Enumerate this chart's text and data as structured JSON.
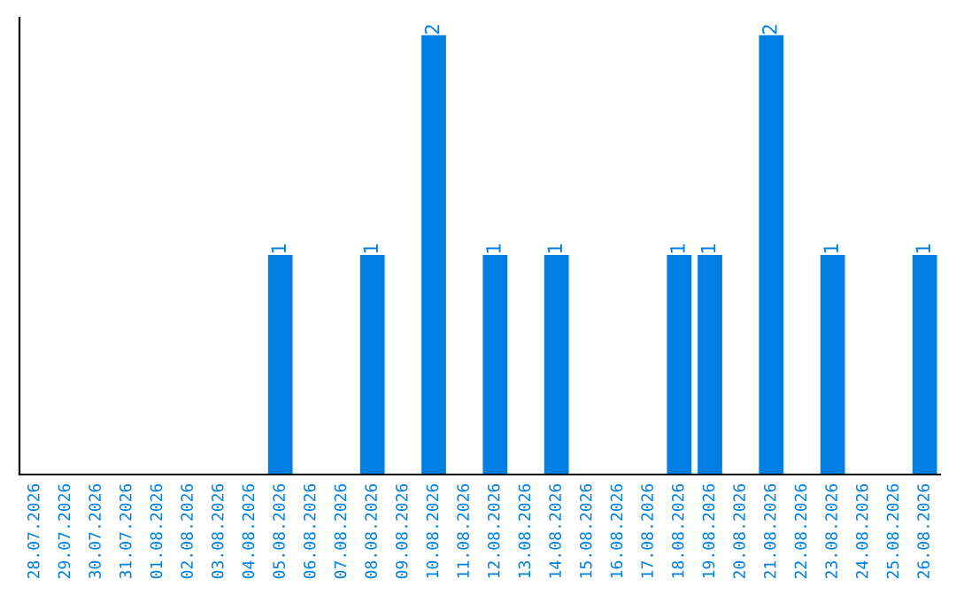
{
  "chart_data": {
    "type": "bar",
    "categories": [
      "28.07.2026",
      "29.07.2026",
      "30.07.2026",
      "31.07.2026",
      "01.08.2026",
      "02.08.2026",
      "03.08.2026",
      "04.08.2026",
      "05.08.2026",
      "06.08.2026",
      "07.08.2026",
      "08.08.2026",
      "09.08.2026",
      "10.08.2026",
      "11.08.2026",
      "12.08.2026",
      "13.08.2026",
      "14.08.2026",
      "15.08.2026",
      "16.08.2026",
      "17.08.2026",
      "18.08.2026",
      "19.08.2026",
      "20.08.2026",
      "21.08.2026",
      "22.08.2026",
      "23.08.2026",
      "24.08.2026",
      "25.08.2026",
      "26.08.2026"
    ],
    "values": [
      0,
      0,
      0,
      0,
      0,
      0,
      0,
      0,
      1,
      0,
      0,
      1,
      0,
      2,
      0,
      1,
      0,
      1,
      0,
      0,
      0,
      1,
      1,
      0,
      2,
      0,
      1,
      0,
      0,
      1
    ],
    "value_labels": [
      null,
      null,
      null,
      null,
      null,
      null,
      null,
      null,
      "1",
      null,
      null,
      "1",
      null,
      "2",
      null,
      "1",
      null,
      "1",
      null,
      null,
      null,
      "1",
      "1",
      null,
      "2",
      null,
      "1",
      null,
      null,
      "1"
    ],
    "color": "#007fe3",
    "tick_labels": "x",
    "grid": false,
    "legend": false
  }
}
